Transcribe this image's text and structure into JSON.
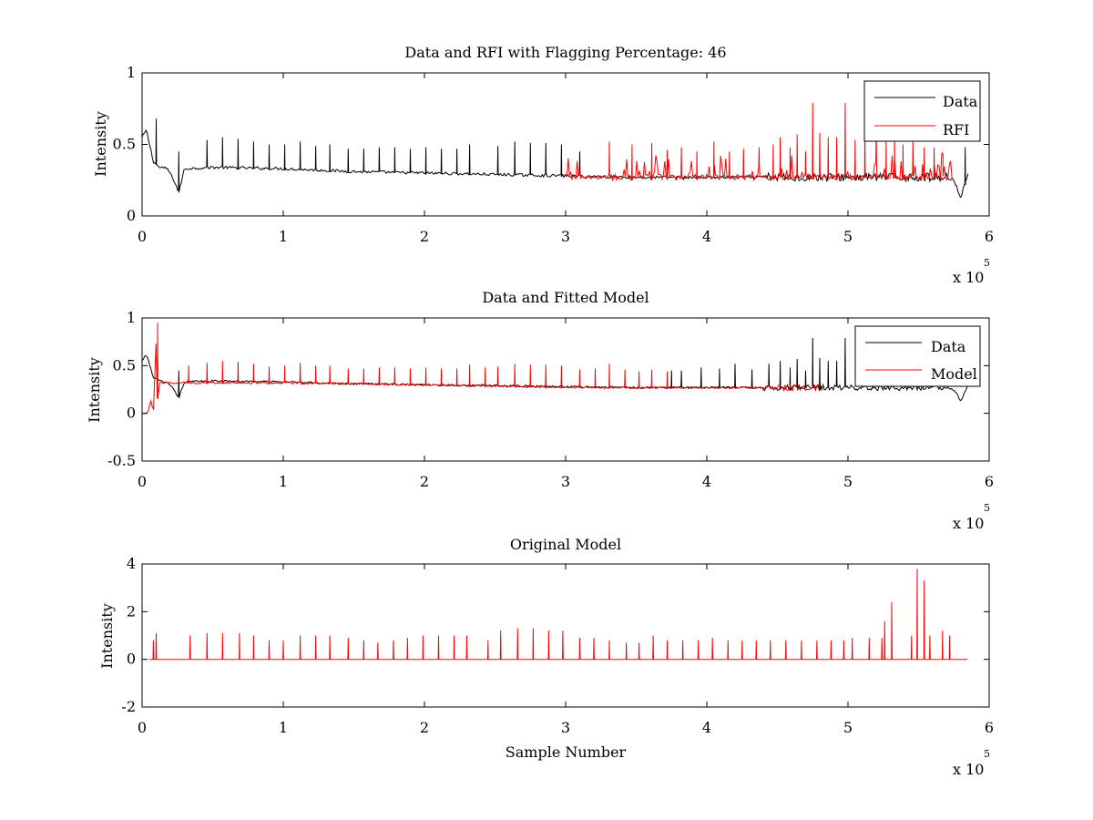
{
  "chart_data": [
    {
      "type": "line",
      "title": "Data and RFI with Flagging Percentage: 46",
      "xlabel": "",
      "ylabel": "Intensity",
      "xlim": [
        0,
        600000
      ],
      "ylim": [
        0,
        1
      ],
      "xticks": [
        0,
        1,
        2,
        3,
        4,
        5,
        6
      ],
      "yticks": [
        0,
        0.5,
        1
      ],
      "xticklabels": [
        "0",
        "1",
        "2",
        "3",
        "4",
        "5",
        "6"
      ],
      "yticklabels": [
        "0",
        "0.5",
        "1"
      ],
      "x_multiplier": "x 10",
      "x_multiplier_exp": "5",
      "legend_position": "top-right",
      "series": [
        {
          "name": "Data",
          "color": "#000000",
          "x": [
            0,
            3000,
            8000,
            12000,
            18000,
            23000,
            26000,
            30000,
            50000,
            100000,
            150000,
            200000,
            250000,
            300000,
            350000,
            400000,
            450000,
            500000,
            550000,
            570000,
            575000,
            580000,
            585000
          ],
          "y": [
            0.55,
            0.6,
            0.38,
            0.34,
            0.33,
            0.24,
            0.16,
            0.33,
            0.34,
            0.33,
            0.31,
            0.3,
            0.29,
            0.28,
            0.27,
            0.27,
            0.27,
            0.27,
            0.27,
            0.27,
            0.25,
            0.13,
            0.3
          ],
          "peaks": [
            [
              10000,
              0.68
            ],
            [
              26000,
              0.45
            ],
            [
              46000,
              0.53
            ],
            [
              57000,
              0.55
            ],
            [
              68000,
              0.54
            ],
            [
              79000,
              0.52
            ],
            [
              90000,
              0.5
            ],
            [
              101000,
              0.5
            ],
            [
              112000,
              0.52
            ],
            [
              123000,
              0.49
            ],
            [
              133000,
              0.5
            ],
            [
              146000,
              0.47
            ],
            [
              157000,
              0.47
            ],
            [
              168000,
              0.48
            ],
            [
              179000,
              0.48
            ],
            [
              190000,
              0.47
            ],
            [
              201000,
              0.48
            ],
            [
              212000,
              0.47
            ],
            [
              223000,
              0.47
            ],
            [
              232000,
              0.5
            ],
            [
              252000,
              0.49
            ],
            [
              264000,
              0.52
            ],
            [
              275000,
              0.51
            ],
            [
              286000,
              0.51
            ],
            [
              297000,
              0.5
            ],
            [
              310000,
              0.45
            ],
            [
              583000,
              0.48
            ]
          ]
        },
        {
          "name": "RFI",
          "color": "#ff0000",
          "x_range": [
            300000,
            575000
          ],
          "baseline": 0.27,
          "peaks": [
            [
              331000,
              0.52
            ],
            [
              347000,
              0.5
            ],
            [
              361000,
              0.51
            ],
            [
              372000,
              0.46
            ],
            [
              382000,
              0.48
            ],
            [
              393000,
              0.45
            ],
            [
              405000,
              0.52
            ],
            [
              416000,
              0.45
            ],
            [
              426000,
              0.47
            ],
            [
              437000,
              0.48
            ],
            [
              447000,
              0.5
            ],
            [
              452000,
              0.55
            ],
            [
              459000,
              0.48
            ],
            [
              464000,
              0.57
            ],
            [
              470000,
              0.45
            ],
            [
              475000,
              0.79
            ],
            [
              480000,
              0.58
            ],
            [
              486000,
              0.55
            ],
            [
              492000,
              0.55
            ],
            [
              498000,
              0.79
            ],
            [
              505000,
              0.53
            ],
            [
              512000,
              0.58
            ],
            [
              520000,
              0.63
            ],
            [
              527000,
              0.52
            ],
            [
              533000,
              0.56
            ],
            [
              539000,
              0.5
            ],
            [
              546000,
              0.53
            ],
            [
              554000,
              0.48
            ],
            [
              561000,
              0.48
            ],
            [
              567000,
              0.44
            ]
          ]
        }
      ]
    },
    {
      "type": "line",
      "title": "Data and Fitted Model",
      "xlabel": "",
      "ylabel": "Intensity",
      "xlim": [
        0,
        600000
      ],
      "ylim": [
        -0.5,
        1
      ],
      "xticks": [
        0,
        1,
        2,
        3,
        4,
        5,
        6
      ],
      "yticks": [
        -0.5,
        0,
        0.5,
        1
      ],
      "xticklabels": [
        "0",
        "1",
        "2",
        "3",
        "4",
        "5",
        "6"
      ],
      "yticklabels": [
        "-0.5",
        "0",
        "0.5",
        "1"
      ],
      "x_multiplier": "x 10",
      "x_multiplier_exp": "5",
      "legend_position": "top-right",
      "series": [
        {
          "name": "Data",
          "color": "#000000",
          "x": [
            0,
            3000,
            8000,
            12000,
            18000,
            23000,
            26000,
            30000,
            50000,
            100000,
            150000,
            200000,
            250000,
            300000,
            350000,
            400000,
            450000,
            500000,
            550000,
            570000,
            575000,
            580000,
            585000
          ],
          "y": [
            0.55,
            0.62,
            0.38,
            0.34,
            0.33,
            0.24,
            0.16,
            0.33,
            0.34,
            0.33,
            0.31,
            0.3,
            0.29,
            0.28,
            0.27,
            0.27,
            0.27,
            0.27,
            0.27,
            0.27,
            0.25,
            0.13,
            0.3
          ],
          "peaks": [
            [
              26000,
              0.45
            ],
            [
              375000,
              0.45
            ],
            [
              382000,
              0.45
            ],
            [
              396000,
              0.48
            ],
            [
              409000,
              0.47
            ],
            [
              420000,
              0.52
            ],
            [
              432000,
              0.46
            ],
            [
              444000,
              0.52
            ],
            [
              452000,
              0.55
            ],
            [
              459000,
              0.48
            ],
            [
              464000,
              0.57
            ],
            [
              470000,
              0.45
            ],
            [
              475000,
              0.79
            ],
            [
              480000,
              0.58
            ],
            [
              486000,
              0.55
            ],
            [
              492000,
              0.55
            ],
            [
              498000,
              0.79
            ]
          ]
        },
        {
          "name": "Model",
          "color": "#ff0000",
          "x": [
            0,
            4000,
            6000,
            8000,
            10000,
            11000,
            12000,
            15000,
            50000,
            100000,
            200000,
            300000,
            400000,
            480000
          ],
          "y": [
            0.0,
            0.0,
            0.15,
            0.0,
            0.77,
            0.0,
            0.32,
            0.32,
            0.32,
            0.32,
            0.3,
            0.27,
            0.27,
            0.27
          ],
          "peaks": [
            [
              11000,
              0.95
            ],
            [
              33000,
              0.5
            ],
            [
              46000,
              0.53
            ],
            [
              57000,
              0.55
            ],
            [
              68000,
              0.54
            ],
            [
              79000,
              0.52
            ],
            [
              90000,
              0.49
            ],
            [
              101000,
              0.5
            ],
            [
              112000,
              0.53
            ],
            [
              123000,
              0.5
            ],
            [
              133000,
              0.5
            ],
            [
              146000,
              0.47
            ],
            [
              157000,
              0.47
            ],
            [
              168000,
              0.48
            ],
            [
              179000,
              0.48
            ],
            [
              190000,
              0.47
            ],
            [
              201000,
              0.48
            ],
            [
              212000,
              0.47
            ],
            [
              223000,
              0.47
            ],
            [
              232000,
              0.51
            ],
            [
              243000,
              0.48
            ],
            [
              252000,
              0.49
            ],
            [
              264000,
              0.52
            ],
            [
              275000,
              0.51
            ],
            [
              286000,
              0.51
            ],
            [
              297000,
              0.5
            ],
            [
              310000,
              0.46
            ],
            [
              321000,
              0.47
            ],
            [
              331000,
              0.52
            ],
            [
              342000,
              0.46
            ],
            [
              352000,
              0.44
            ],
            [
              361000,
              0.46
            ],
            [
              372000,
              0.44
            ]
          ]
        }
      ]
    },
    {
      "type": "line",
      "title": "Original Model",
      "xlabel": "Sample Number",
      "ylabel": "Intensity",
      "xlim": [
        0,
        600000
      ],
      "ylim": [
        -2,
        4
      ],
      "xticks": [
        0,
        1,
        2,
        3,
        4,
        5,
        6
      ],
      "yticks": [
        -2,
        0,
        2,
        4
      ],
      "xticklabels": [
        "0",
        "1",
        "2",
        "3",
        "4",
        "5",
        "6"
      ],
      "yticklabels": [
        "-2",
        "0",
        "2",
        "4"
      ],
      "x_multiplier": "x 10",
      "x_multiplier_exp": "5",
      "series": [
        {
          "color": "#ff0000",
          "x_range": [
            5000,
            585000
          ],
          "baseline": 0.0,
          "peaks": [
            [
              8000,
              0.8
            ],
            [
              10000,
              1.1
            ],
            [
              34000,
              1.0
            ],
            [
              46000,
              1.1
            ],
            [
              57000,
              1.1
            ],
            [
              69000,
              1.1
            ],
            [
              79000,
              1.0
            ],
            [
              90000,
              0.8
            ],
            [
              100000,
              0.8
            ],
            [
              112000,
              1.0
            ],
            [
              123000,
              1.0
            ],
            [
              133000,
              1.0
            ],
            [
              146000,
              0.9
            ],
            [
              157000,
              0.8
            ],
            [
              167000,
              0.7
            ],
            [
              178000,
              0.8
            ],
            [
              188000,
              0.9
            ],
            [
              199000,
              1.0
            ],
            [
              210000,
              1.0
            ],
            [
              221000,
              1.0
            ],
            [
              230000,
              1.0
            ],
            [
              245000,
              0.8
            ],
            [
              254000,
              1.2
            ],
            [
              266000,
              1.3
            ],
            [
              277000,
              1.3
            ],
            [
              288000,
              1.2
            ],
            [
              298000,
              1.2
            ],
            [
              310000,
              0.9
            ],
            [
              320000,
              0.9
            ],
            [
              331000,
              0.8
            ],
            [
              343000,
              0.7
            ],
            [
              352000,
              0.7
            ],
            [
              362000,
              1.0
            ],
            [
              372000,
              0.8
            ],
            [
              383000,
              0.8
            ],
            [
              394000,
              0.8
            ],
            [
              404000,
              0.9
            ],
            [
              415000,
              0.8
            ],
            [
              425000,
              0.8
            ],
            [
              435000,
              0.8
            ],
            [
              445000,
              0.8
            ],
            [
              456000,
              0.8
            ],
            [
              467000,
              0.8
            ],
            [
              478000,
              0.8
            ],
            [
              488000,
              0.8
            ],
            [
              497000,
              0.8
            ],
            [
              503000,
              0.9
            ],
            [
              515000,
              0.9
            ],
            [
              524000,
              0.9
            ],
            [
              526000,
              1.6
            ],
            [
              531000,
              2.4
            ],
            [
              545000,
              1.0
            ],
            [
              549000,
              3.8
            ],
            [
              554000,
              3.3
            ],
            [
              558000,
              1.0
            ],
            [
              567000,
              1.2
            ],
            [
              572000,
              1.0
            ]
          ]
        }
      ]
    }
  ],
  "legends": [
    {
      "items": [
        {
          "label": "Data",
          "color": "#000000"
        },
        {
          "label": "RFI",
          "color": "#ff0000"
        }
      ]
    },
    {
      "items": [
        {
          "label": "Data",
          "color": "#000000"
        },
        {
          "label": "Model",
          "color": "#ff0000"
        }
      ]
    }
  ]
}
